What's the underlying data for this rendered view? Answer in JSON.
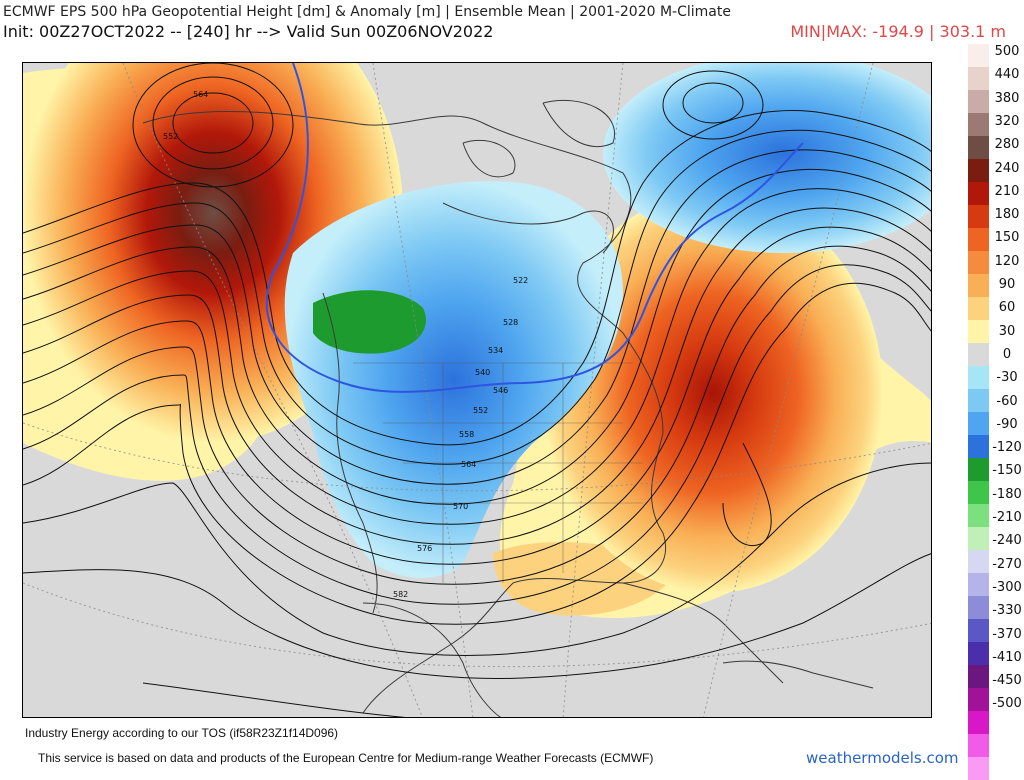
{
  "header": {
    "title": "ECMWF EPS 500 hPa Geopotential Height [dm] & Anomaly [m] | Ensemble Mean | 2001-2020 M-Climate",
    "init": "Init: 00Z27OCT2022 -- [240] hr --> Valid Sun 00Z06NOV2022",
    "minmax": "MIN|MAX: -194.9 | 303.1 m"
  },
  "map": {
    "contour_labels": [
      "522",
      "528",
      "534",
      "540",
      "546",
      "552",
      "558",
      "564",
      "570",
      "576",
      "582",
      "564",
      "552"
    ],
    "colors": {
      "background": "#d9d9d9",
      "land": "#d2d2d2",
      "water": "#d9d9d9"
    }
  },
  "legend": {
    "values": [
      "500",
      "440",
      "380",
      "320",
      "280",
      "240",
      "210",
      "180",
      "150",
      "120",
      "90",
      "60",
      "30",
      "0",
      "-30",
      "-60",
      "-90",
      "-120",
      "-150",
      "-180",
      "-210",
      "-240",
      "-270",
      "-300",
      "-330",
      "-370",
      "-410",
      "-450",
      "-500"
    ],
    "colors": [
      "#faeeea",
      "#e8d2cc",
      "#c9aca7",
      "#9b7a73",
      "#6e4e44",
      "#7a1d11",
      "#b2180a",
      "#d63a10",
      "#ee6422",
      "#f58b3c",
      "#f9af55",
      "#fcd27e",
      "#fff4a8",
      "#d9d9d9",
      "#a6e5f6",
      "#7ec9f4",
      "#4fa5ef",
      "#2c72dc",
      "#1e9b2e",
      "#3ec54a",
      "#7de07e",
      "#c0f0b8",
      "#d6d8f2",
      "#b4b4ea",
      "#8c8cd8",
      "#5a58c4",
      "#4a2eac",
      "#6c1680",
      "#a21298",
      "#d818c6",
      "#f25ae8",
      "#fa9af4"
    ]
  },
  "footer": {
    "line1": "Industry Energy according to our TOS (if58R23Z1f14D096)",
    "line2": "This service is based on data and products of the European Centre for Medium-range Weather Forecasts (ECMWF)",
    "brand": "weathermodels.com"
  }
}
